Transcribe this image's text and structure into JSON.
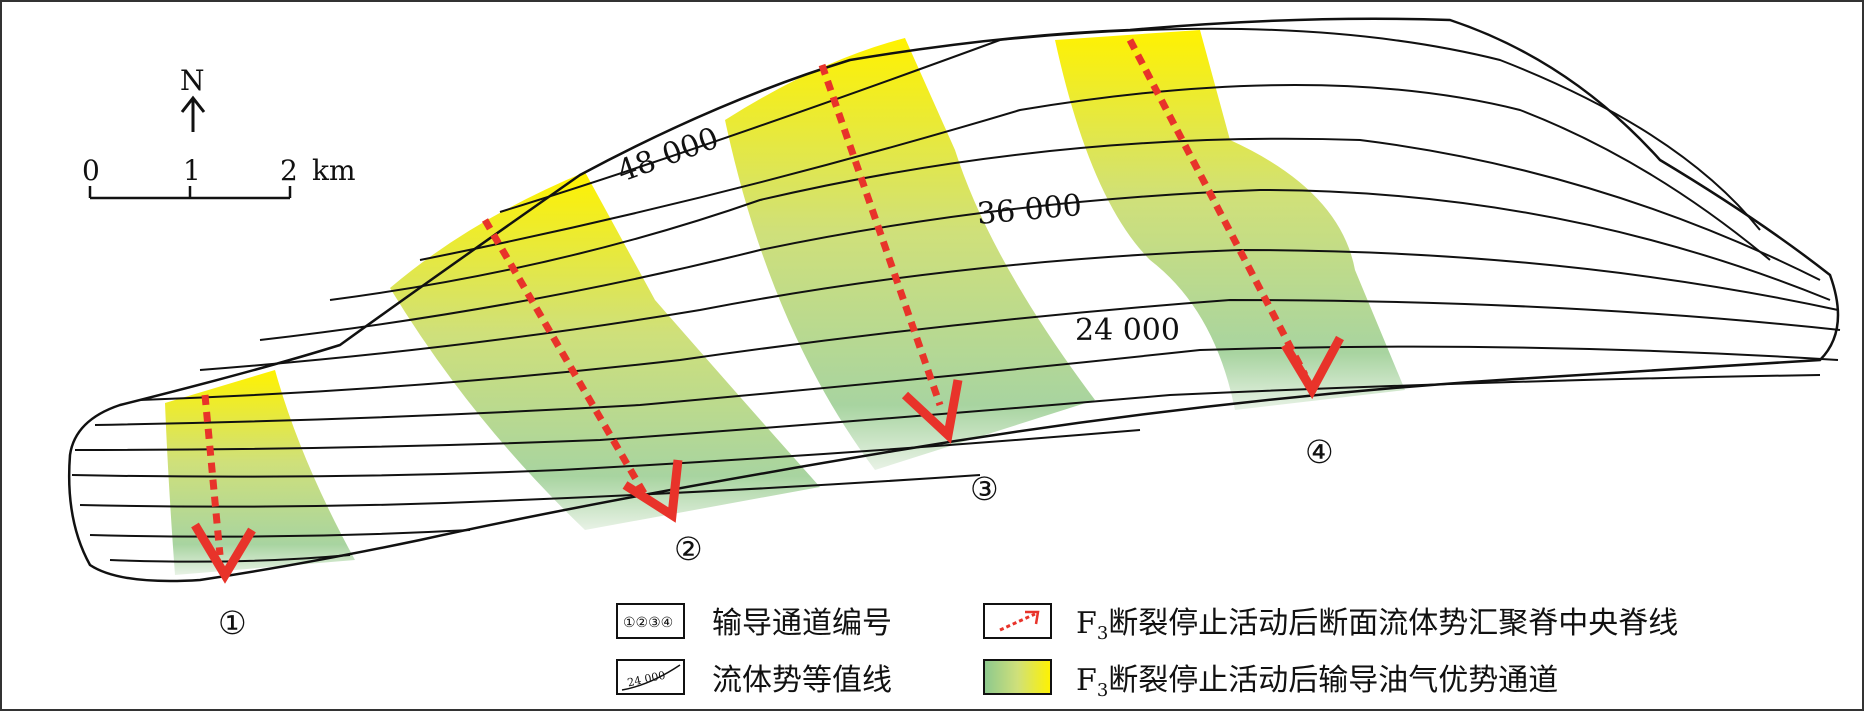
{
  "compass": {
    "north_label": "N"
  },
  "scale_bar": {
    "ticks": [
      "0",
      "1",
      "2"
    ],
    "unit": "km"
  },
  "contour_labels": [
    "48 000",
    "36 000",
    "24 000"
  ],
  "channels": [
    {
      "number": "①"
    },
    {
      "number": "②"
    },
    {
      "number": "③"
    },
    {
      "number": "④"
    }
  ],
  "legend": {
    "channel_number": {
      "sample": "①②③④",
      "label": "输导通道编号"
    },
    "contour": {
      "sample": "24 000",
      "label": "流体势等值线"
    },
    "ridge_line": {
      "f_letter": "F",
      "f_sub": "3",
      "label": "断裂停止活动后断面流体势汇聚脊中央脊线"
    },
    "pathway": {
      "f_letter": "F",
      "f_sub": "3",
      "label": "断裂停止活动后输导油气优势通道"
    }
  },
  "colors": {
    "pathway_top": "#fff200",
    "pathway_mid": "#cfe07a",
    "pathway_bottom": "#8cc88e",
    "ridge_arrow": "#e8332a",
    "line": "#111111"
  }
}
